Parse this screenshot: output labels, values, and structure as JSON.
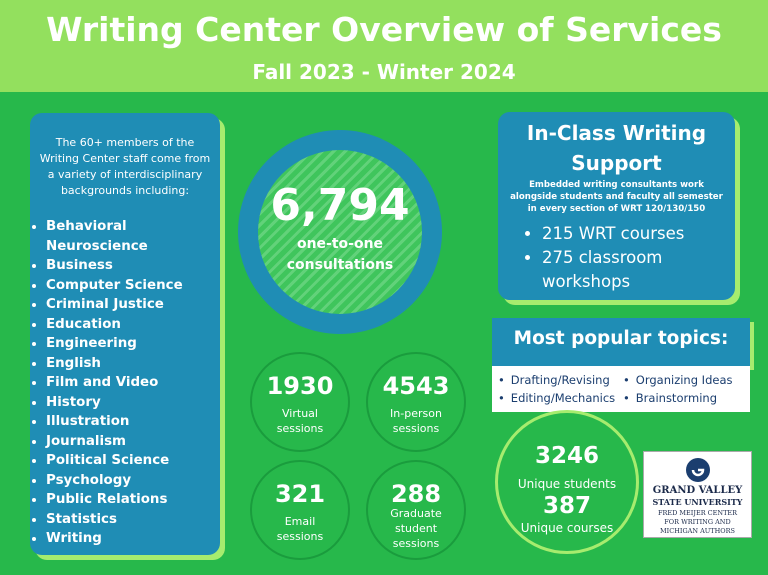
{
  "header": {
    "title": "Writing Center Overview of Services",
    "subtitle": "Fall 2023 - Winter 2024"
  },
  "staff": {
    "intro": "The 60+ members of the Writing Center staff come from a variety of interdisciplinary backgrounds including:",
    "disciplines": [
      "Behavioral Neuroscience",
      "Business",
      "Computer Science",
      "Criminal Justice",
      "Education",
      "Engineering",
      "English",
      "Film and Video",
      "History",
      "Illustration",
      "Journalism",
      "Political Science",
      "Psychology",
      "Public Relations",
      "Statistics",
      "Writing"
    ]
  },
  "consultations": {
    "value": "6,794",
    "label": "one-to-one consultations"
  },
  "sessions": [
    {
      "value": "1930",
      "label": "Virtual sessions"
    },
    {
      "value": "4543",
      "label": "In-person sessions"
    },
    {
      "value": "321",
      "label": "Email sessions"
    },
    {
      "value": "288",
      "label": "Graduate student sessions"
    }
  ],
  "in_class": {
    "title": "In-Class Writing Support",
    "description": "Embedded writing consultants work alongside students and faculty all semester in every section of WRT 120/130/150",
    "items": [
      "215 WRT courses",
      "275 classroom workshops"
    ]
  },
  "topics": {
    "title": "Most popular topics:",
    "items": [
      "Drafting/Revising",
      "Organizing Ideas",
      "Editing/Mechanics",
      "Brainstorming"
    ]
  },
  "unique": [
    {
      "value": "3246",
      "label": "Unique students"
    },
    {
      "value": "387",
      "label": "Unique courses"
    }
  ],
  "logo": {
    "lines": [
      "GRAND VALLEY",
      "STATE UNIVERSITY",
      "FRED MEIJER CENTER",
      "FOR WRITING AND",
      "MICHIGAN AUTHORS"
    ]
  }
}
